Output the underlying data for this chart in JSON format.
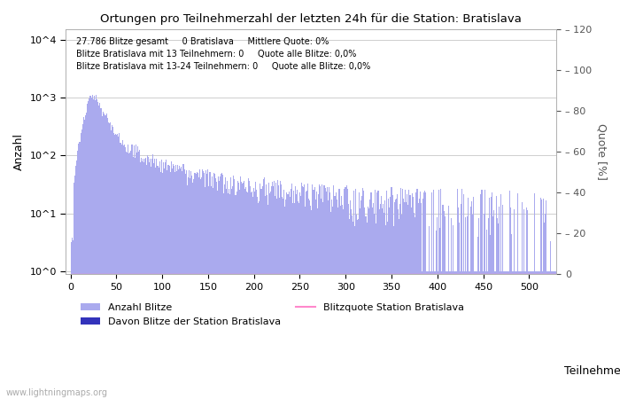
{
  "title": "Ortungen pro Teilnehmerzahl der letzten 24h für die Station: Bratislava",
  "xlabel": "Teilnehmer",
  "ylabel_left": "Anzahl",
  "ylabel_right": "Quote [%]",
  "annotation_lines": [
    "27.786 Blitze gesamt     0 Bratislava     Mittlere Quote: 0%",
    "Blitze Bratislava mit 13 Teilnehmern: 0     Quote alle Blitze: 0,0%",
    "Blitze Bratislava mit 13-24 Teilnehmern: 0     Quote alle Blitze: 0,0%"
  ],
  "watermark": "www.lightningmaps.org",
  "bar_color_main": "#aaaaee",
  "bar_color_station": "#3333bb",
  "line_color_quote": "#ff88cc",
  "background_color": "#ffffff",
  "grid_color": "#bbbbbb",
  "legend_label_1": "Anzahl Blitze",
  "legend_label_2": "Davon Blitze der Station Bratislava",
  "legend_label_3": "Blitzquote Station Bratislava",
  "xlim": [
    -5,
    530
  ],
  "ylim_right": [
    0,
    120
  ],
  "yticks_right": [
    0,
    20,
    40,
    60,
    80,
    100,
    120
  ],
  "xticks": [
    0,
    50,
    100,
    150,
    200,
    250,
    300,
    350,
    400,
    450,
    500
  ],
  "figsize": [
    7.0,
    4.5
  ],
  "dpi": 100
}
